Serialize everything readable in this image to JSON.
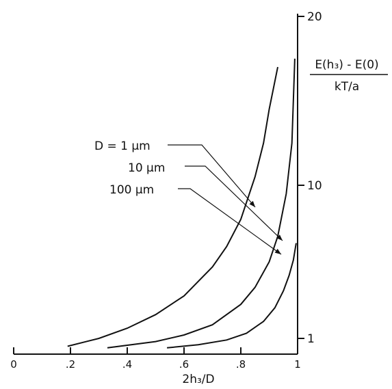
{
  "chart_data": {
    "type": "line",
    "title": "",
    "xlabel": "2h₃/D",
    "ylabel_numerator": "E(h₃) - E(0)",
    "ylabel_denominator": "kT/a",
    "y_axis_side": "right",
    "xlim": [
      0,
      1
    ],
    "x_ticks": [
      "0",
      ".2",
      ".4",
      ".6",
      ".8",
      "1"
    ],
    "y_ticks": [
      "1",
      "10",
      "20"
    ],
    "grid": false,
    "series": [
      {
        "name": "D = 1 μm",
        "label": "D = 1 μm",
        "x": [
          0.19,
          0.3,
          0.4,
          0.5,
          0.6,
          0.7,
          0.75,
          0.8,
          0.85,
          0.88,
          0.9,
          0.93
        ],
        "y": [
          0.5,
          1.0,
          1.6,
          2.4,
          3.5,
          5.2,
          6.4,
          8.0,
          10.5,
          12.5,
          14.5,
          17.0
        ]
      },
      {
        "name": "10 μm",
        "label": "10 μm",
        "x": [
          0.33,
          0.5,
          0.6,
          0.7,
          0.8,
          0.85,
          0.9,
          0.93,
          0.96,
          0.98,
          0.99
        ],
        "y": [
          0.4,
          0.8,
          1.2,
          1.8,
          3.0,
          4.0,
          5.5,
          7.0,
          9.5,
          12.5,
          17.5
        ]
      },
      {
        "name": "100 μm",
        "label": "100 μm",
        "x": [
          0.54,
          0.65,
          0.75,
          0.82,
          0.88,
          0.92,
          0.95,
          0.97,
          0.985,
          0.995
        ],
        "y": [
          0.4,
          0.6,
          0.9,
          1.3,
          2.0,
          2.8,
          3.8,
          4.7,
          5.6,
          6.6
        ]
      }
    ]
  }
}
